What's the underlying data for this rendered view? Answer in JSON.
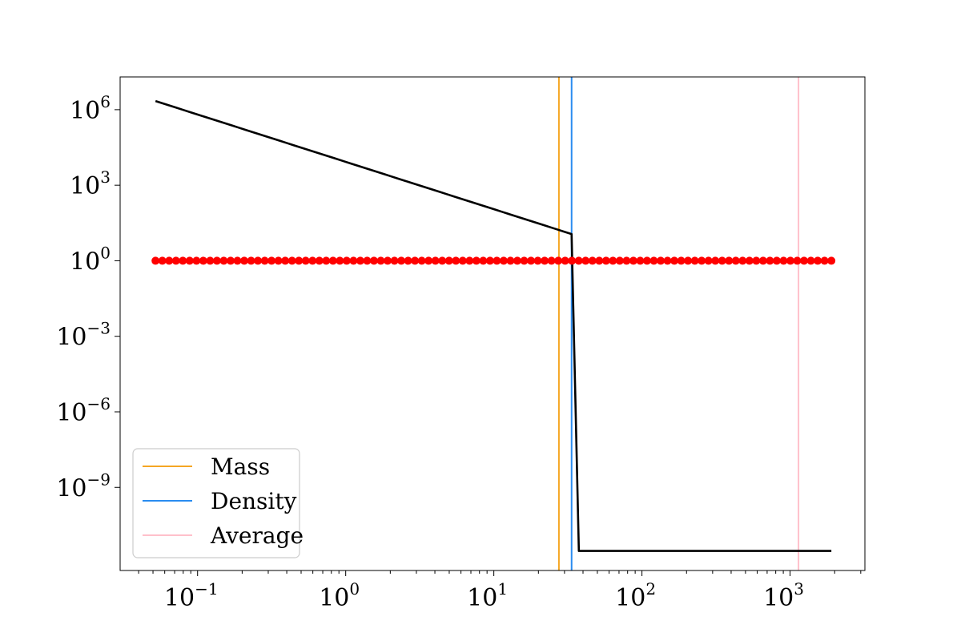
{
  "chart_data": {
    "type": "line",
    "title": "",
    "xlabel": "",
    "ylabel": "",
    "x_scale": "log",
    "y_scale": "log",
    "xlim": [
      0.03,
      3200
    ],
    "ylim": [
      5e-13,
      20000000.0
    ],
    "x_ticks": [
      {
        "base": "10",
        "exp": "−1",
        "value": 0.1
      },
      {
        "base": "10",
        "exp": "0",
        "value": 1
      },
      {
        "base": "10",
        "exp": "1",
        "value": 10
      },
      {
        "base": "10",
        "exp": "2",
        "value": 100
      },
      {
        "base": "10",
        "exp": "3",
        "value": 1000
      }
    ],
    "y_ticks": [
      {
        "base": "10",
        "exp": "6",
        "value": 1000000.0
      },
      {
        "base": "10",
        "exp": "3",
        "value": 1000.0
      },
      {
        "base": "10",
        "exp": "0",
        "value": 1
      },
      {
        "base": "10",
        "exp": "−3",
        "value": 0.001
      },
      {
        "base": "10",
        "exp": "−6",
        "value": 1e-06
      },
      {
        "base": "10",
        "exp": "−9",
        "value": 1e-09
      }
    ],
    "series": [
      {
        "color": "#000000",
        "style": "line",
        "profile": {
          "x_start": 0.052,
          "y_start": 2200000.0,
          "x_break": 33.5,
          "y_break": 11.5,
          "x_drop": 37.5,
          "y_floor": 3e-12,
          "x_end": 1900,
          "n_points": 60
        }
      },
      {
        "color": "#ff0000",
        "style": "markers",
        "x_start": 0.052,
        "x_end": 1900,
        "count": 100,
        "y": 1
      }
    ],
    "vlines": [
      {
        "name": "Mass",
        "x": 27.5,
        "color": "#f5a623"
      },
      {
        "name": "Density",
        "x": 33.5,
        "color": "#2a8cf0"
      },
      {
        "name": "Average",
        "x": 1140,
        "color": "#ffc0cb"
      }
    ],
    "grid": false,
    "legend_position": "lower-left"
  }
}
